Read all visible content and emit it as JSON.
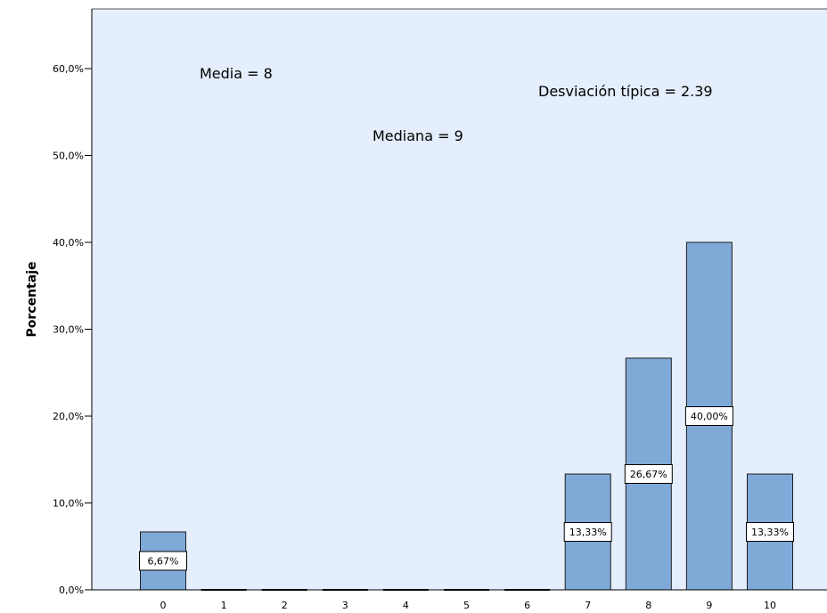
{
  "chart_data": {
    "type": "bar",
    "title": "",
    "xlabel": "",
    "ylabel": "Porcentaje",
    "categories": [
      "0",
      "1",
      "2",
      "3",
      "4",
      "5",
      "6",
      "7",
      "8",
      "9",
      "10"
    ],
    "values": [
      6.67,
      0,
      0,
      0,
      0,
      0,
      0,
      13.33,
      26.67,
      40.0,
      13.33
    ],
    "data_labels": [
      "6,67%",
      "",
      "",
      "",
      "",
      "",
      "",
      "13,33%",
      "26,67%",
      "40,00%",
      "13,33%"
    ],
    "ylim": [
      0,
      68
    ],
    "yticks": [
      0,
      10,
      20,
      30,
      40,
      50,
      60
    ],
    "ytick_labels": [
      "0,0%",
      "10,0%",
      "20,0%",
      "30,0%",
      "40,0%",
      "50,0%",
      "60,0%"
    ],
    "grid": false,
    "colors": {
      "plot_background": "#e4eefc",
      "bar_fill": "#7fa9d7",
      "bar_stroke": "#1f1f1f",
      "label_box": "#ffffff"
    },
    "annotations": [
      {
        "id": "media",
        "text": "Media = 8"
      },
      {
        "id": "mediana",
        "text": "Mediana = 9"
      },
      {
        "id": "desviacion",
        "text": "Desviación típica = 2.39"
      }
    ]
  }
}
